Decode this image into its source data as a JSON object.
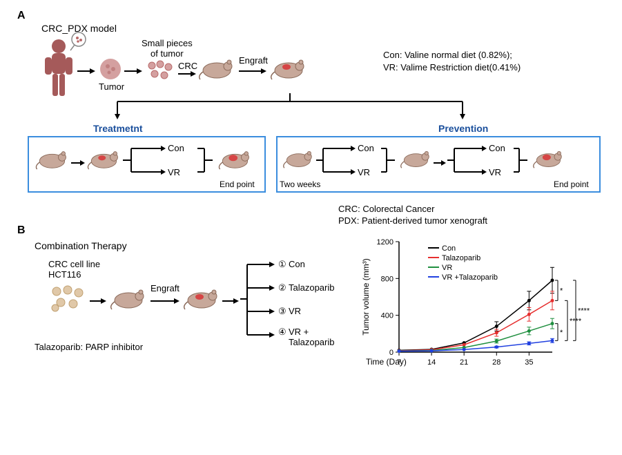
{
  "panelA": {
    "label": "A",
    "title": "CRC_PDX model",
    "flow": {
      "human_label": "",
      "tumor_label": "Tumor",
      "small_pieces": "Small pieces\nof tumor",
      "crc_label": "CRC",
      "engraft": "Engraft"
    },
    "legend_con": "Con: Valine normal diet (0.82%);",
    "legend_vr": "VR: Valime Restriction diet(0.41%)",
    "treatment_label": "Treatmetnt",
    "prevention_label": "Prevention",
    "treatment": {
      "con": "Con",
      "vr": "VR",
      "endpoint": "End point"
    },
    "prevention": {
      "two_weeks": "Two weeks",
      "con": "Con",
      "vr": "VR",
      "end_con": "Con",
      "end_vr": "VR",
      "endpoint": "End point"
    },
    "abbrev_crc": "CRC: Colorectal Cancer",
    "abbrev_pdx": "PDX:  Patient-derived tumor xenograft"
  },
  "panelB": {
    "label": "B",
    "title": "Combination Therapy",
    "cell_line": "CRC cell line\nHCT116",
    "engraft": "Engraft",
    "arms": {
      "arm1": "Con",
      "arm2": "Talazoparib",
      "arm3": "VR",
      "arm4": "VR +\nTalazoparib",
      "n1": "①",
      "n2": "②",
      "n3": "③",
      "n4": "④"
    },
    "note": "Talazoparib: PARP inhibitor",
    "chart": {
      "type": "line",
      "title": "",
      "xlabel": "Time (Day)",
      "ylabel": "Tumor volume (mm³)",
      "xlim": [
        7,
        40
      ],
      "ylim": [
        0,
        1200
      ],
      "xtick": [
        7,
        14,
        21,
        28,
        35
      ],
      "ytick": [
        0,
        400,
        800,
        1200
      ],
      "series": [
        {
          "name": "Con",
          "color": "#000000",
          "x": [
            7,
            14,
            21,
            28,
            35,
            40
          ],
          "y": [
            20,
            30,
            100,
            280,
            560,
            780
          ]
        },
        {
          "name": "Talazoparib",
          "color": "#e62e2e",
          "x": [
            7,
            14,
            21,
            28,
            35,
            40
          ],
          "y": [
            15,
            25,
            80,
            210,
            410,
            560
          ]
        },
        {
          "name": "VR",
          "color": "#1f8f3f",
          "x": [
            7,
            14,
            21,
            28,
            35,
            40
          ],
          "y": [
            12,
            18,
            50,
            120,
            230,
            310
          ]
        },
        {
          "name": "VR +Talazoparib",
          "color": "#2040e0",
          "x": [
            7,
            14,
            21,
            28,
            35,
            40
          ],
          "y": [
            10,
            14,
            28,
            55,
            95,
            125
          ]
        }
      ],
      "errorbars": true,
      "sig1": "*",
      "sig2": "*",
      "sig3": "****",
      "sig4": "****",
      "axis_color": "#000",
      "background_color": "#ffffff",
      "line_width": 1.5,
      "font_size": 11
    }
  },
  "colors": {
    "human": "#a55a5a",
    "tumor": "#d4a0a0",
    "tumor_inner": "#b86a6a",
    "mouse": "#c7a89a",
    "mouse_outline": "#8a6a5a",
    "mouse_tumor": "#d64545",
    "cells": "#e0c8a8",
    "box_border": "#3a8dde"
  }
}
